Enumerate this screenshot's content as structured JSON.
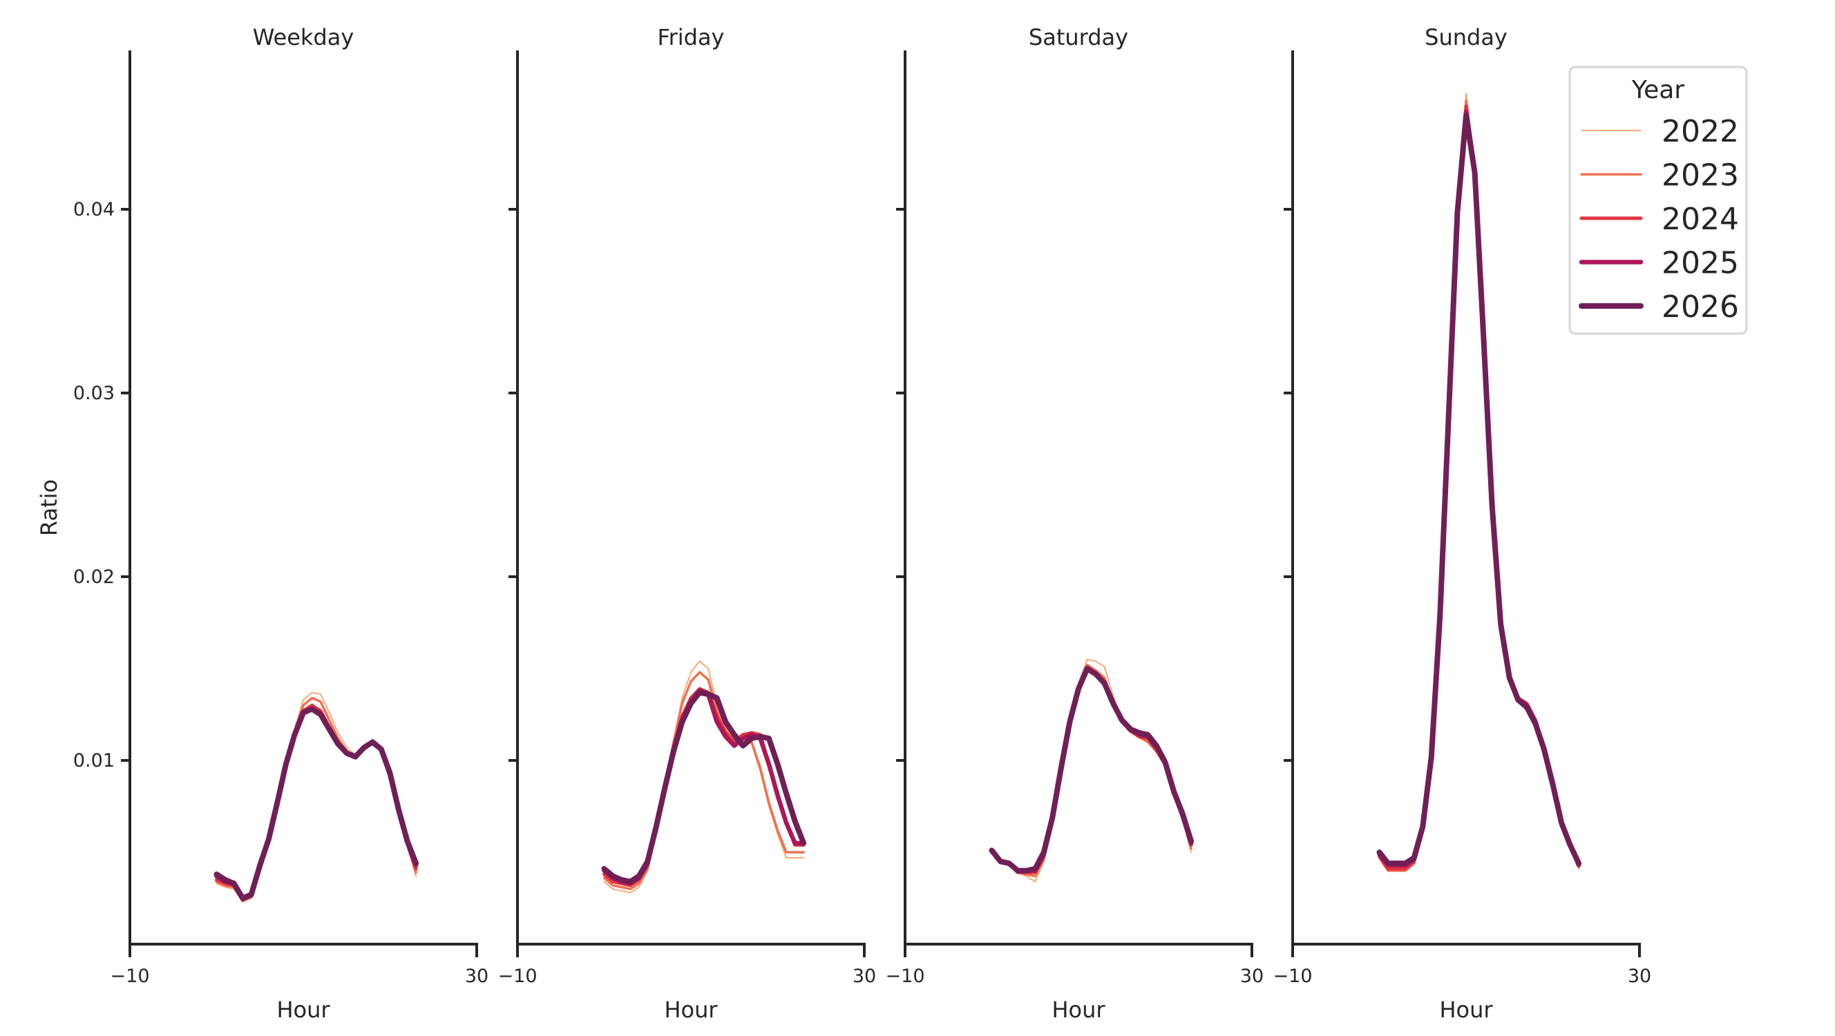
{
  "chart_data": {
    "type": "line",
    "title": "",
    "xlabel": "Hour",
    "ylabel": "Ratio",
    "xlim": [
      -10,
      30
    ],
    "ylim": [
      0,
      0.0486
    ],
    "x_ticks": [
      "−10",
      "30"
    ],
    "y_ticks": [
      "0.01",
      "0.02",
      "0.03",
      "0.04"
    ],
    "y_tick_values": [
      0.01,
      0.02,
      0.03,
      0.04
    ],
    "grid": false,
    "legend": {
      "title": "Year",
      "position": "upper right",
      "entries": [
        "2022",
        "2023",
        "2024",
        "2025",
        "2026"
      ]
    },
    "colors": {
      "2022": "#f6a97a",
      "2023": "#f07150",
      "2024": "#e13342",
      "2025": "#ad1759",
      "2026": "#701f57"
    },
    "line_widths": {
      "2022": 2,
      "2023": 3.5,
      "2024": 5,
      "2025": 6.5,
      "2026": 8
    },
    "x": [
      0,
      1,
      2,
      3,
      4,
      5,
      6,
      7,
      8,
      9,
      10,
      11,
      12,
      13,
      14,
      15,
      16,
      17,
      18,
      19,
      20,
      21,
      22,
      23
    ],
    "panels": [
      {
        "title": "Weekday",
        "series": [
          {
            "name": "2022",
            "values": [
              0.0033,
              0.0031,
              0.003,
              0.0023,
              0.0025,
              0.0041,
              0.0055,
              0.0077,
              0.0099,
              0.0117,
              0.0133,
              0.0137,
              0.0136,
              0.0126,
              0.0115,
              0.0107,
              0.0103,
              0.0107,
              0.011,
              0.0105,
              0.0091,
              0.007,
              0.0053,
              0.0037
            ]
          },
          {
            "name": "2023",
            "values": [
              0.0034,
              0.0032,
              0.0031,
              0.0024,
              0.0026,
              0.0041,
              0.0055,
              0.0077,
              0.0099,
              0.0116,
              0.013,
              0.0134,
              0.0132,
              0.0122,
              0.0112,
              0.0105,
              0.0102,
              0.0107,
              0.011,
              0.0105,
              0.0091,
              0.0071,
              0.0054,
              0.0039
            ]
          },
          {
            "name": "2024",
            "values": [
              0.0035,
              0.0033,
              0.0032,
              0.0024,
              0.0026,
              0.0042,
              0.0056,
              0.0077,
              0.0098,
              0.0115,
              0.0127,
              0.013,
              0.0127,
              0.0118,
              0.011,
              0.0104,
              0.0102,
              0.0107,
              0.011,
              0.0106,
              0.0092,
              0.0072,
              0.0055,
              0.0041
            ]
          },
          {
            "name": "2025",
            "values": [
              0.0037,
              0.0034,
              0.0033,
              0.0025,
              0.0027,
              0.0043,
              0.0057,
              0.0077,
              0.0098,
              0.0114,
              0.0126,
              0.0128,
              0.0125,
              0.0117,
              0.0109,
              0.0104,
              0.0102,
              0.0107,
              0.011,
              0.0106,
              0.0093,
              0.0073,
              0.0056,
              0.0043
            ]
          },
          {
            "name": "2026",
            "values": [
              0.0038,
              0.0035,
              0.0033,
              0.0025,
              0.0027,
              0.0043,
              0.0057,
              0.0077,
              0.0098,
              0.0114,
              0.0126,
              0.0128,
              0.0125,
              0.0117,
              0.0109,
              0.0104,
              0.0102,
              0.0107,
              0.011,
              0.0106,
              0.0093,
              0.0073,
              0.0056,
              0.0044
            ]
          }
        ]
      },
      {
        "title": "Friday",
        "series": [
          {
            "name": "2022",
            "values": [
              0.0034,
              0.003,
              0.0029,
              0.0028,
              0.0031,
              0.004,
              0.0061,
              0.0084,
              0.011,
              0.0134,
              0.0148,
              0.0154,
              0.015,
              0.013,
              0.0118,
              0.0111,
              0.0111,
              0.0109,
              0.0094,
              0.0075,
              0.006,
              0.0047,
              0.0047,
              0.0047
            ]
          },
          {
            "name": "2023",
            "values": [
              0.0036,
              0.0032,
              0.0031,
              0.003,
              0.0033,
              0.0041,
              0.0062,
              0.0085,
              0.011,
              0.0131,
              0.0143,
              0.0148,
              0.0144,
              0.0127,
              0.0116,
              0.0111,
              0.0112,
              0.011,
              0.0096,
              0.0077,
              0.0062,
              0.005,
              0.005,
              0.005
            ]
          },
          {
            "name": "2024",
            "values": [
              0.0038,
              0.0034,
              0.0033,
              0.0032,
              0.0035,
              0.0043,
              0.0063,
              0.0085,
              0.0107,
              0.0124,
              0.0134,
              0.0139,
              0.0137,
              0.0124,
              0.0115,
              0.011,
              0.0114,
              0.0115,
              0.0114,
              0.0098,
              0.0081,
              0.0066,
              0.0054,
              0.0054
            ]
          },
          {
            "name": "2025",
            "values": [
              0.004,
              0.0036,
              0.0034,
              0.0033,
              0.0036,
              0.0044,
              0.0064,
              0.0085,
              0.0106,
              0.0122,
              0.0132,
              0.0138,
              0.0136,
              0.0121,
              0.0113,
              0.0108,
              0.0112,
              0.0114,
              0.0112,
              0.0098,
              0.0081,
              0.0066,
              0.0055,
              0.0055
            ]
          },
          {
            "name": "2026",
            "values": [
              0.0041,
              0.0037,
              0.0035,
              0.0034,
              0.0037,
              0.0045,
              0.0064,
              0.0085,
              0.0105,
              0.0121,
              0.0131,
              0.0137,
              0.0136,
              0.0134,
              0.0121,
              0.0114,
              0.0108,
              0.0112,
              0.0113,
              0.0112,
              0.0098,
              0.0082,
              0.0067,
              0.0055
            ]
          }
        ]
      },
      {
        "title": "Saturday",
        "series": [
          {
            "name": "2022",
            "values": [
              0.005,
              0.0045,
              0.0044,
              0.0039,
              0.0037,
              0.0034,
              0.0045,
              0.0065,
              0.0093,
              0.0122,
              0.0142,
              0.0155,
              0.0154,
              0.0151,
              0.0135,
              0.0122,
              0.0116,
              0.0112,
              0.011,
              0.0104,
              0.0097,
              0.0081,
              0.0068,
              0.005
            ]
          },
          {
            "name": "2023",
            "values": [
              0.005,
              0.0045,
              0.0044,
              0.0039,
              0.0038,
              0.0037,
              0.0046,
              0.0066,
              0.0094,
              0.0121,
              0.014,
              0.0152,
              0.0149,
              0.0145,
              0.0132,
              0.0121,
              0.0116,
              0.0113,
              0.011,
              0.0105,
              0.0097,
              0.0082,
              0.0069,
              0.0052
            ]
          },
          {
            "name": "2024",
            "values": [
              0.0051,
              0.0045,
              0.0044,
              0.0039,
              0.0039,
              0.0039,
              0.0048,
              0.0068,
              0.0095,
              0.0121,
              0.0139,
              0.015,
              0.0147,
              0.0143,
              0.0131,
              0.0121,
              0.0116,
              0.0113,
              0.0112,
              0.0106,
              0.0098,
              0.0082,
              0.007,
              0.0054
            ]
          },
          {
            "name": "2025",
            "values": [
              0.0051,
              0.0045,
              0.0044,
              0.004,
              0.004,
              0.004,
              0.0049,
              0.0069,
              0.0096,
              0.0121,
              0.0139,
              0.015,
              0.0147,
              0.0142,
              0.0131,
              0.0122,
              0.0117,
              0.0114,
              0.0113,
              0.0107,
              0.0099,
              0.0083,
              0.007,
              0.0055
            ]
          },
          {
            "name": "2026",
            "values": [
              0.0051,
              0.0045,
              0.0044,
              0.004,
              0.004,
              0.0041,
              0.005,
              0.0069,
              0.0096,
              0.0121,
              0.0139,
              0.015,
              0.0147,
              0.0142,
              0.0131,
              0.0122,
              0.0117,
              0.0115,
              0.0114,
              0.0108,
              0.0099,
              0.0083,
              0.0071,
              0.0056
            ]
          }
        ]
      },
      {
        "title": "Sunday",
        "series": [
          {
            "name": "2022",
            "values": [
              0.0047,
              0.004,
              0.004,
              0.004,
              0.0044,
              0.0062,
              0.0101,
              0.018,
              0.029,
              0.04,
              0.0463,
              0.0425,
              0.0335,
              0.024,
              0.0175,
              0.0146,
              0.0134,
              0.013,
              0.0121,
              0.0107,
              0.0087,
              0.0066,
              0.0053,
              0.0041
            ]
          },
          {
            "name": "2023",
            "values": [
              0.0047,
              0.004,
              0.004,
              0.004,
              0.0044,
              0.0062,
              0.0101,
              0.018,
              0.029,
              0.0399,
              0.0459,
              0.0424,
              0.0334,
              0.024,
              0.0175,
              0.0146,
              0.0134,
              0.0131,
              0.0122,
              0.0107,
              0.0087,
              0.0066,
              0.0054,
              0.0042
            ]
          },
          {
            "name": "2024",
            "values": [
              0.0048,
              0.0041,
              0.0041,
              0.0041,
              0.0045,
              0.0063,
              0.0101,
              0.0179,
              0.0289,
              0.0398,
              0.0456,
              0.0422,
              0.0333,
              0.024,
              0.0175,
              0.0146,
              0.0134,
              0.0131,
              0.0122,
              0.0107,
              0.0087,
              0.0066,
              0.0054,
              0.0043
            ]
          },
          {
            "name": "2025",
            "values": [
              0.0049,
              0.0043,
              0.0043,
              0.0043,
              0.0046,
              0.0063,
              0.0101,
              0.0179,
              0.0289,
              0.0398,
              0.0453,
              0.0421,
              0.0333,
              0.024,
              0.0174,
              0.0145,
              0.0133,
              0.013,
              0.0121,
              0.0106,
              0.0087,
              0.0066,
              0.0054,
              0.0043
            ]
          },
          {
            "name": "2026",
            "values": [
              0.005,
              0.0044,
              0.0044,
              0.0044,
              0.0047,
              0.0064,
              0.0102,
              0.0179,
              0.0289,
              0.0398,
              0.0451,
              0.042,
              0.0332,
              0.0239,
              0.0174,
              0.0145,
              0.0133,
              0.0129,
              0.012,
              0.0106,
              0.0087,
              0.0066,
              0.0054,
              0.0044
            ]
          }
        ]
      }
    ]
  }
}
